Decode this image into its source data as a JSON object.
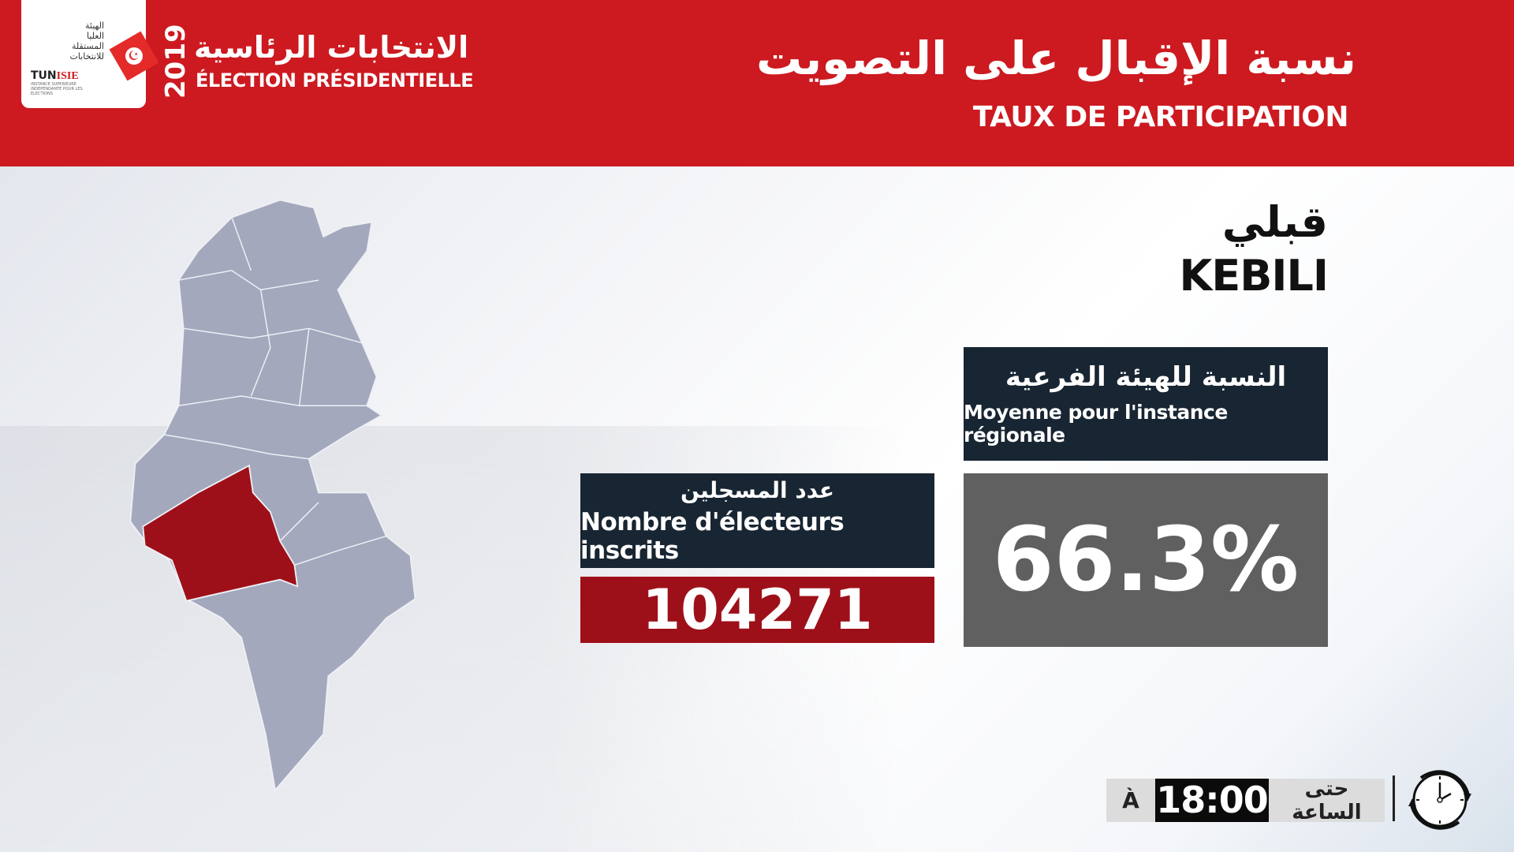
{
  "header": {
    "logo": {
      "arabic_lines": [
        "الهيئة",
        "العليا",
        "المستقلة",
        "للانتخابات"
      ],
      "tun": "TUN",
      "isie": "ISIE",
      "subtitle": "INSTANCE SUPERIEURE INDEPENDANTE POUR LES ELECTIONS"
    },
    "year": "2019",
    "election_ar": "الانتخابات الرئاسية",
    "election_fr": "ÉLECTION PRÉSIDENTIELLE",
    "title_ar": "نسبة الإقبال على التصويت",
    "title_fr": "TAUX DE PARTICIPATION"
  },
  "region": {
    "name_ar": "قبلي",
    "name_fr": "KEBILI"
  },
  "average": {
    "label_ar": "النسبة للهيئة الفرعية",
    "label_fr": "Moyenne pour l'instance régionale",
    "value": "66.3%"
  },
  "registered": {
    "label_ar": "عدد المسجلين",
    "label_fr": "Nombre d'électeurs inscrits",
    "value": "104271"
  },
  "time": {
    "prefix_fr": "À",
    "value": "18:00",
    "label_ar": "حتى الساعة"
  },
  "colors": {
    "header": "#cc1a20",
    "dark_box": "#182532",
    "value_box": "#606060",
    "registered_value": "#9e1019",
    "map_region": "#a3a8bd",
    "map_highlight": "#9e1019"
  },
  "icons": {
    "clock": "clock-refresh-icon",
    "flag": "tunisia-flag-icon"
  }
}
